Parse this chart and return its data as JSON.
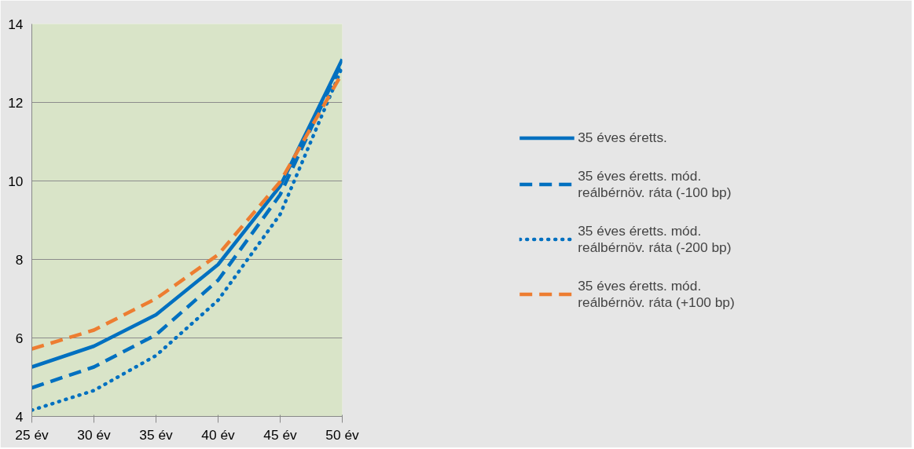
{
  "chart_data": {
    "type": "line",
    "x": [
      25,
      30,
      35,
      40,
      45,
      50
    ],
    "xlim": [
      25,
      50
    ],
    "xticks": [
      {
        "value": 25,
        "label": "25 év"
      },
      {
        "value": 30,
        "label": "30 év"
      },
      {
        "value": 35,
        "label": "35 év"
      },
      {
        "value": 40,
        "label": "40 év"
      },
      {
        "value": 45,
        "label": "45 év"
      },
      {
        "value": 50,
        "label": "50 év"
      }
    ],
    "ylim": [
      4,
      14
    ],
    "yticks": [
      4,
      6,
      8,
      10,
      12,
      14
    ],
    "grid": "y",
    "legend": "right",
    "series": [
      {
        "name": "35 éves éretts.",
        "color": "#0070c0",
        "line_style": "solid",
        "values": [
          5.26,
          5.79,
          6.59,
          7.87,
          9.87,
          13.1
        ]
      },
      {
        "name": "35 éves éretts. mód. reálbérnöv. ráta (-100 bp)",
        "color": "#0070c0",
        "line_style": "dashed",
        "values": [
          4.73,
          5.26,
          6.08,
          7.47,
          9.65,
          13.05
        ]
      },
      {
        "name": "35 éves éretts. mód. reálbérnöv. ráta (-200 bp)",
        "color": "#0070c0",
        "line_style": "dotted",
        "values": [
          4.16,
          4.66,
          5.55,
          6.96,
          9.15,
          12.9
        ]
      },
      {
        "name": "35 éves éretts. mód. reálbérnöv. ráta (+100 bp)",
        "color": "#ed7d31",
        "line_style": "dashed",
        "values": [
          5.72,
          6.2,
          7.0,
          8.12,
          9.98,
          12.75
        ]
      }
    ]
  }
}
